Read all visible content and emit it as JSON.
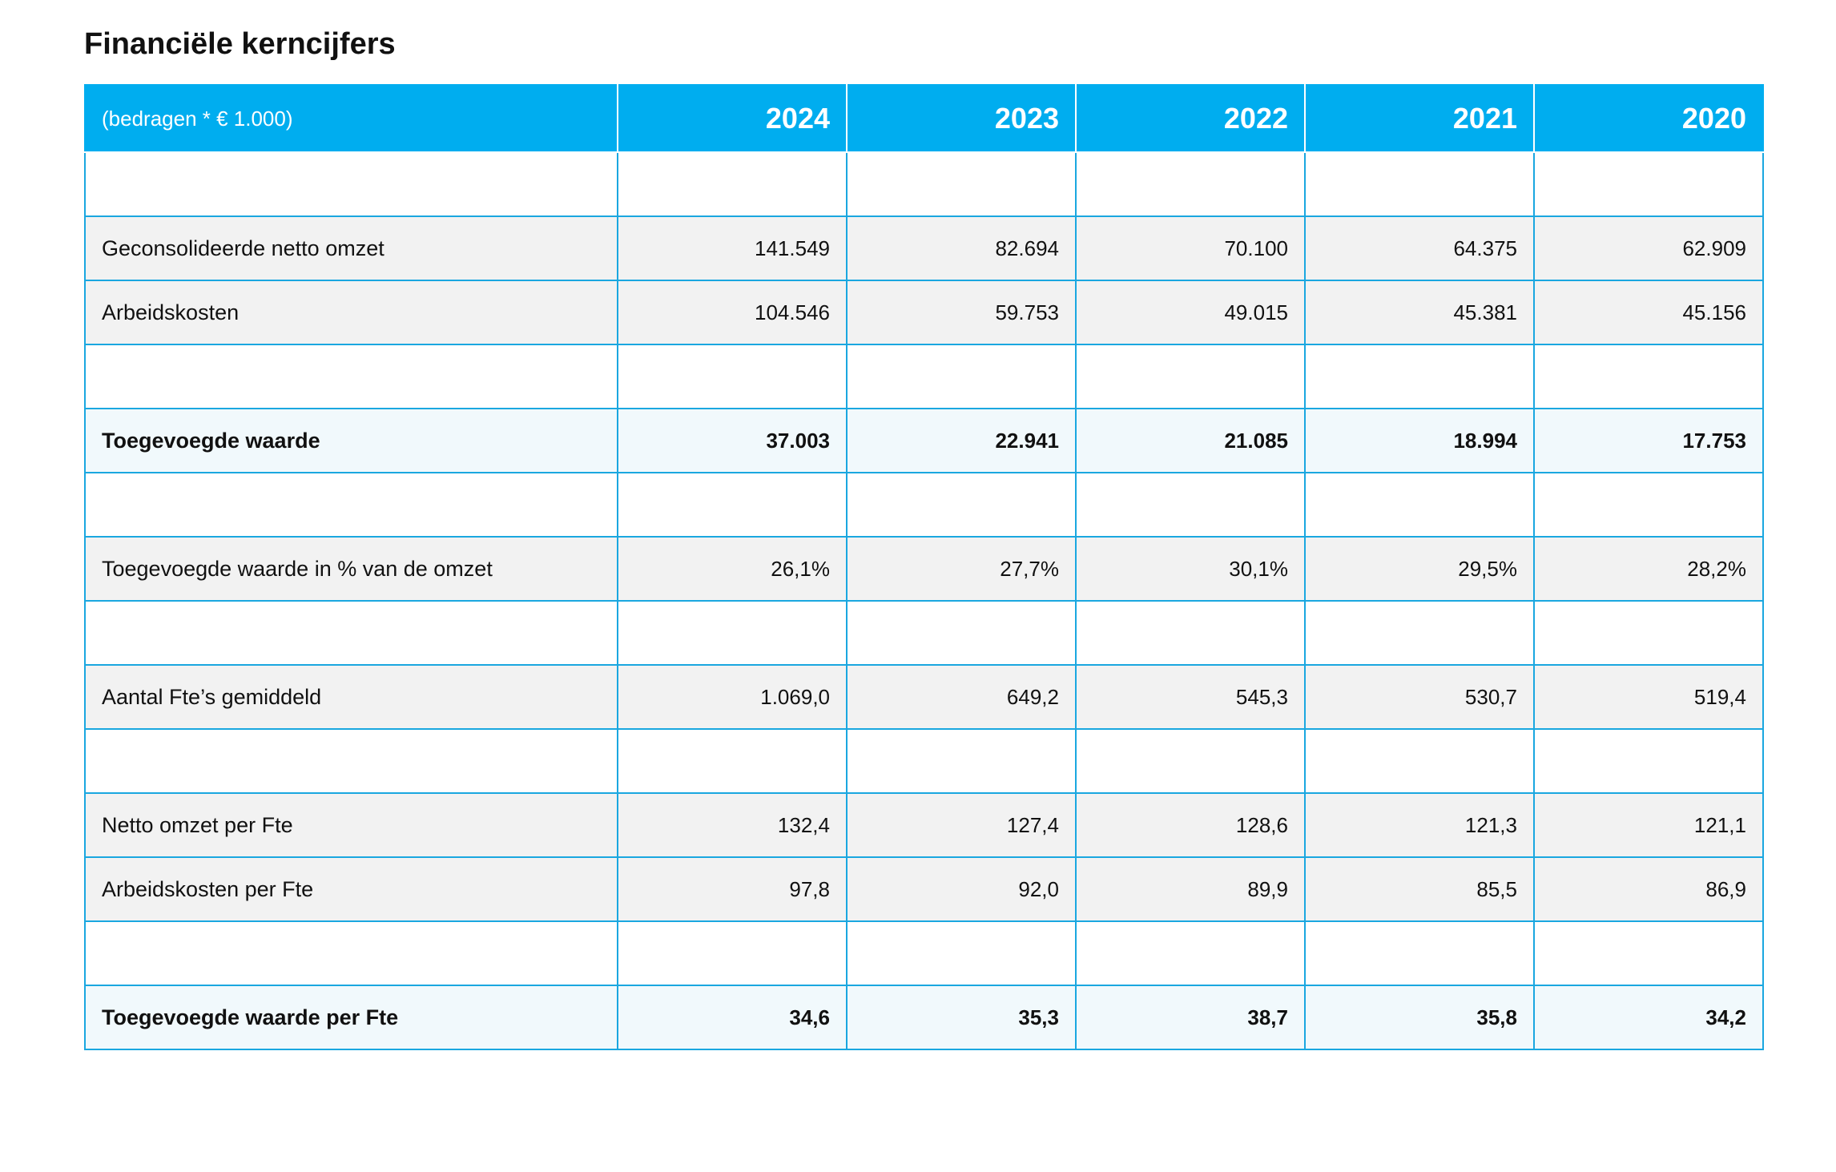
{
  "title": "Financiële kerncijfers",
  "table": {
    "unit_label": "(bedragen * € 1.000)",
    "years": [
      "2024",
      "2023",
      "2022",
      "2021",
      "2020"
    ],
    "rows": [
      {
        "type": "blank",
        "label": "",
        "values": [
          "",
          "",
          "",
          "",
          ""
        ]
      },
      {
        "type": "data",
        "label": "Geconsolideerde netto omzet",
        "values": [
          "141.549",
          "82.694",
          "70.100",
          "64.375",
          "62.909"
        ]
      },
      {
        "type": "data",
        "label": "Arbeidskosten",
        "values": [
          "104.546",
          "59.753",
          "49.015",
          "45.381",
          "45.156"
        ]
      },
      {
        "type": "blank",
        "label": "",
        "values": [
          "",
          "",
          "",
          "",
          ""
        ]
      },
      {
        "type": "total",
        "label": "Toegevoegde waarde",
        "values": [
          "37.003",
          "22.941",
          "21.085",
          "18.994",
          "17.753"
        ]
      },
      {
        "type": "blank",
        "label": "",
        "values": [
          "",
          "",
          "",
          "",
          ""
        ]
      },
      {
        "type": "data",
        "label": "Toegevoegde waarde in % van de omzet",
        "values": [
          "26,1%",
          "27,7%",
          "30,1%",
          "29,5%",
          "28,2%"
        ]
      },
      {
        "type": "blank",
        "label": "",
        "values": [
          "",
          "",
          "",
          "",
          ""
        ]
      },
      {
        "type": "data",
        "label": "Aantal Fte’s gemiddeld",
        "values": [
          "1.069,0",
          "649,2",
          "545,3",
          "530,7",
          "519,4"
        ]
      },
      {
        "type": "blank",
        "label": "",
        "values": [
          "",
          "",
          "",
          "",
          ""
        ]
      },
      {
        "type": "data",
        "label": "Netto omzet per Fte",
        "values": [
          "132,4",
          "127,4",
          "128,6",
          "121,3",
          "121,1"
        ]
      },
      {
        "type": "data",
        "label": "Arbeidskosten per Fte",
        "values": [
          "97,8",
          "92,0",
          "89,9",
          "85,5",
          "86,9"
        ]
      },
      {
        "type": "blank",
        "label": "",
        "values": [
          "",
          "",
          "",
          "",
          ""
        ]
      },
      {
        "type": "total",
        "label": "Toegevoegde waarde per Fte",
        "values": [
          "34,6",
          "35,3",
          "38,7",
          "35,8",
          "34,2"
        ]
      }
    ]
  }
}
